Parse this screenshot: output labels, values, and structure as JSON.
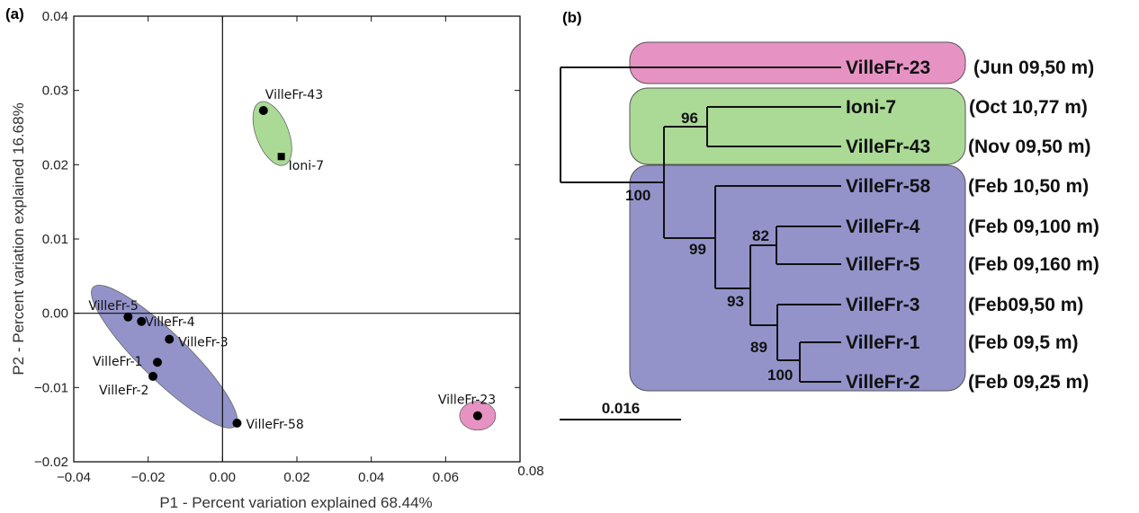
{
  "chart_data": [
    {
      "panel": "(a)",
      "type": "scatter",
      "xlabel": "P1 - Percent variation explained 68.44%",
      "ylabel": "P2 - Percent variation explained 16.68%",
      "xlim": [
        -0.04,
        0.08
      ],
      "ylim": [
        -0.02,
        0.04
      ],
      "xticks": [
        "−0.04",
        "−0.02",
        "0.00",
        "0.02",
        "0.04",
        "0.06",
        "0.08"
      ],
      "yticks": [
        "−0.02",
        "−0.01",
        "0.00",
        "0.01",
        "0.02",
        "0.03",
        "0.04"
      ],
      "xtick_values": [
        -0.04,
        -0.02,
        0.0,
        0.02,
        0.04,
        0.06,
        0.08
      ],
      "ytick_values": [
        -0.02,
        -0.01,
        0.0,
        0.01,
        0.02,
        0.03,
        0.04
      ],
      "reference_lines": {
        "x": 0,
        "y": 0
      },
      "grid": false,
      "points": [
        {
          "label": "VilleFr-43",
          "x": 0.011,
          "y": 0.0273,
          "marker": "circle",
          "group": "green"
        },
        {
          "label": "Ioni-7",
          "x": 0.0158,
          "y": 0.0211,
          "marker": "square",
          "group": "green"
        },
        {
          "label": "VilleFr-5",
          "x": -0.0254,
          "y": -0.0005,
          "marker": "circle",
          "group": "blue"
        },
        {
          "label": "VilleFr-4",
          "x": -0.0218,
          "y": -0.0011,
          "marker": "circle",
          "group": "blue"
        },
        {
          "label": "VilleFr-3",
          "x": -0.0143,
          "y": -0.0035,
          "marker": "circle",
          "group": "blue"
        },
        {
          "label": "VilleFr-1",
          "x": -0.0175,
          "y": -0.0066,
          "marker": "circle",
          "group": "blue"
        },
        {
          "label": "VilleFr-2",
          "x": -0.0187,
          "y": -0.0085,
          "marker": "circle",
          "group": "blue"
        },
        {
          "label": "VilleFr-58",
          "x": 0.0039,
          "y": -0.0148,
          "marker": "circle",
          "group": "blue"
        },
        {
          "label": "VilleFr-23",
          "x": 0.0686,
          "y": -0.0138,
          "marker": "circle",
          "group": "pink"
        }
      ],
      "groups": {
        "green": {
          "color": "#8fce73"
        },
        "blue": {
          "color": "#6f6fb8"
        },
        "pink": {
          "color": "#de6fb0"
        }
      }
    },
    {
      "panel": "(b)",
      "type": "tree",
      "leaves": [
        {
          "name": "VilleFr-23",
          "annotation": "(Jun 09,50 m)",
          "group": "pink"
        },
        {
          "name": "Ioni-7",
          "annotation": "(Oct 10,77 m)",
          "group": "green"
        },
        {
          "name": "VilleFr-43",
          "annotation": "(Nov 09,50 m)",
          "group": "green"
        },
        {
          "name": "VilleFr-58",
          "annotation": "(Feb 10,50 m)",
          "group": "blue"
        },
        {
          "name": "VilleFr-4",
          "annotation": "(Feb 09,100 m)",
          "group": "blue"
        },
        {
          "name": "VilleFr-5",
          "annotation": "(Feb 09,160 m)",
          "group": "blue"
        },
        {
          "name": "VilleFr-3",
          "annotation": "(Feb09,50 m)",
          "group": "blue"
        },
        {
          "name": "VilleFr-1",
          "annotation": "(Feb 09,5 m)",
          "group": "blue"
        },
        {
          "name": "VilleFr-2",
          "annotation": "(Feb 09,25 m)",
          "group": "blue"
        }
      ],
      "bootstrap": [
        "100",
        "96",
        "99",
        "82",
        "93",
        "89",
        "100"
      ],
      "scale_bar": "0.016"
    }
  ]
}
